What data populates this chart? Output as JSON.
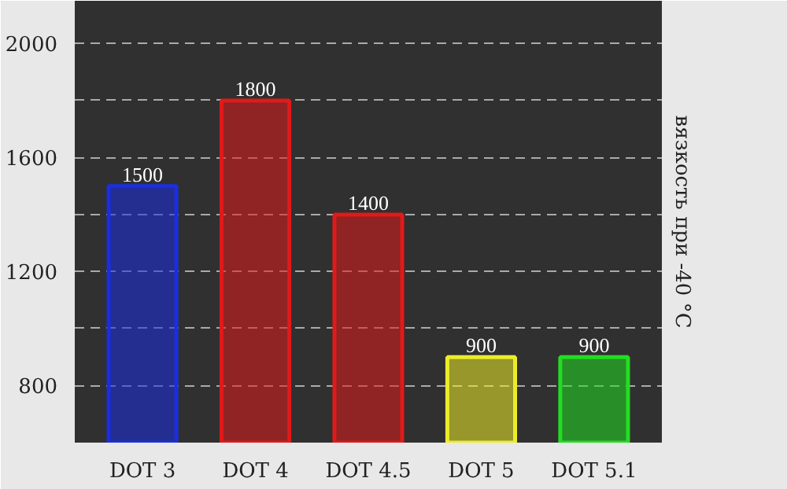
{
  "chart_data": {
    "type": "bar",
    "ylabel": "вязкость при -40 °C",
    "categories": [
      "DOT 3",
      "DOT 4",
      "DOT 4.5",
      "DOT 5",
      "DOT 5.1"
    ],
    "values": [
      1500,
      1800,
      1400,
      900,
      900
    ],
    "colors": [
      "#1a2ee0",
      "#e01a1a",
      "#e01a1a",
      "#ecec2a",
      "#22dd22"
    ],
    "ylim": [
      600,
      2150
    ],
    "yticks": [
      800,
      {
        "value": 1000,
        "label": null
      },
      1200,
      {
        "value": 1400,
        "label": null
      },
      1600,
      {
        "value": 1800,
        "label": null
      },
      2000
    ],
    "grid": "y",
    "data_labels": true
  }
}
